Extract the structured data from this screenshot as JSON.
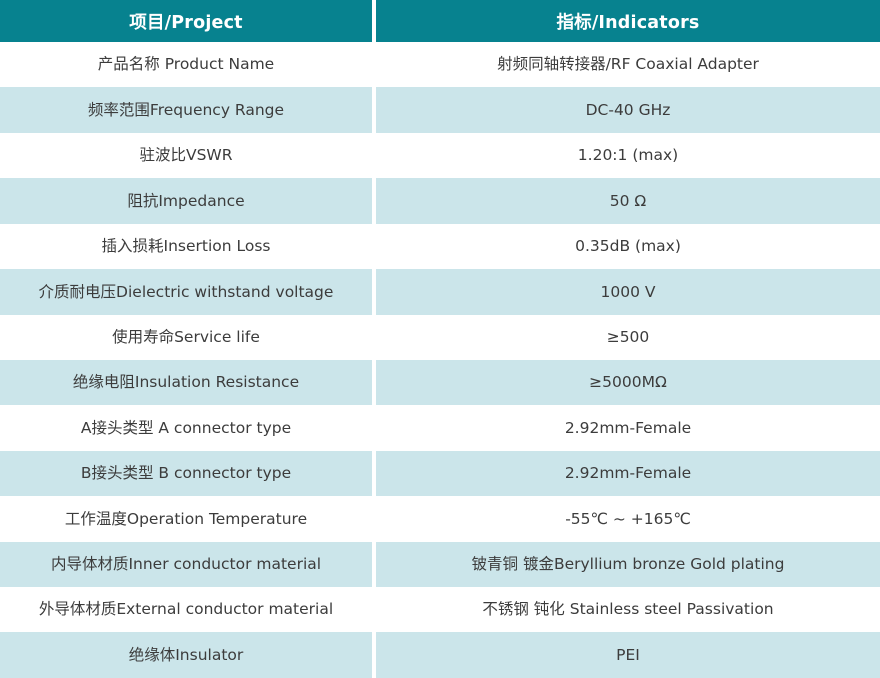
{
  "colors": {
    "header_bg": "#07828f",
    "header_text": "#ffffff",
    "alt_row_bg": "#cbe5ea",
    "row_bg": "#ffffff",
    "cell_text": "#3c3c3c",
    "column_divider": "#ffffff"
  },
  "table": {
    "header": {
      "project": "项目/Project",
      "indicators": "指标/Indicators"
    },
    "rows": [
      {
        "project": "产品名称 Product Name",
        "indicator": "射频同轴转接器/RF Coaxial Adapter"
      },
      {
        "project": "频率范围Frequency Range",
        "indicator": "DC-40 GHz"
      },
      {
        "project": "驻波比VSWR",
        "indicator": "1.20:1 (max)"
      },
      {
        "project": "阻抗Impedance",
        "indicator": "50 Ω"
      },
      {
        "project": "插入损耗Insertion Loss",
        "indicator": "0.35dB (max)"
      },
      {
        "project": "介质耐电压Dielectric withstand voltage",
        "indicator": "1000 V"
      },
      {
        "project": "使用寿命Service life",
        "indicator": "≥500"
      },
      {
        "project": "绝缘电阻Insulation Resistance",
        "indicator": "≥5000MΩ"
      },
      {
        "project": "A接头类型 A connector type",
        "indicator": "2.92mm-Female"
      },
      {
        "project": "B接头类型 B connector type",
        "indicator": "2.92mm-Female"
      },
      {
        "project": "工作温度Operation Temperature",
        "indicator": "-55℃ ~ +165℃"
      },
      {
        "project": "内导体材质Inner conductor material",
        "indicator": "铍青铜 镀金Beryllium bronze Gold plating"
      },
      {
        "project": "外导体材质External conductor material",
        "indicator": "不锈钢 钝化 Stainless steel Passivation"
      },
      {
        "project": "绝缘体Insulator",
        "indicator": "PEI"
      }
    ]
  }
}
